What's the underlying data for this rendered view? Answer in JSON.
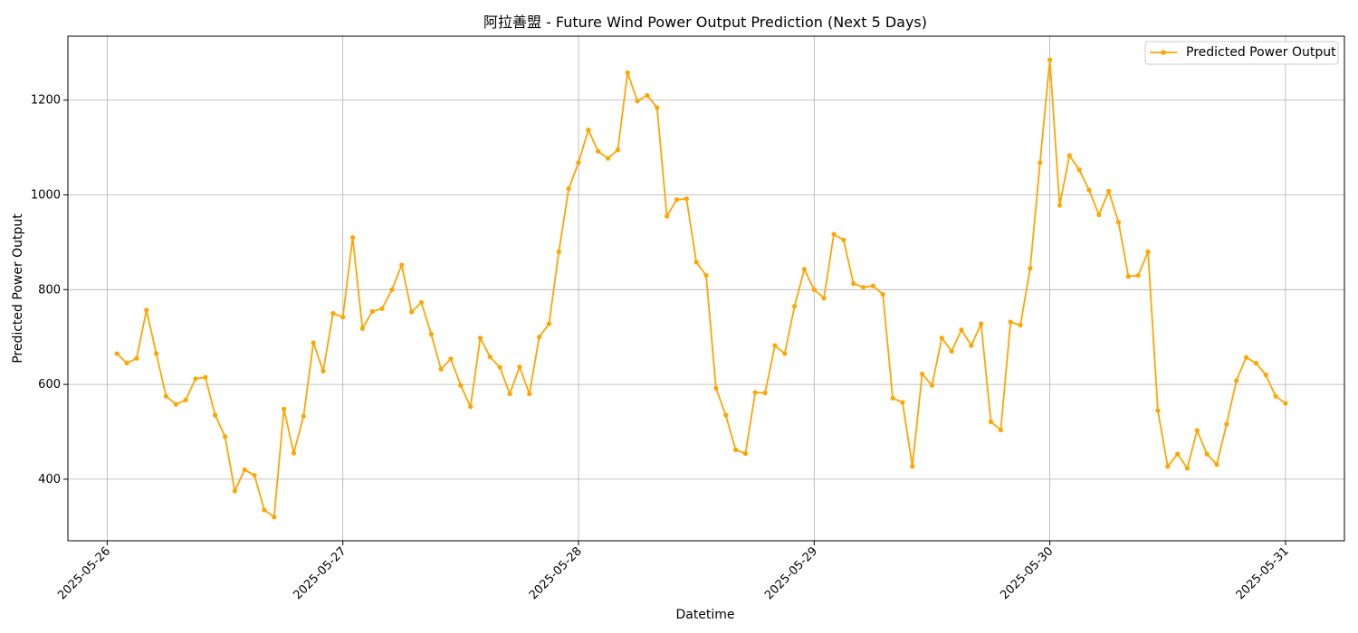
{
  "chart_data": {
    "type": "line",
    "title": "阿拉善盟 - Future Wind Power Output Prediction (Next 5 Days)",
    "xlabel": "Datetime",
    "ylabel": "Predicted Power Output",
    "x_ticks": [
      "2025-05-26",
      "2025-05-27",
      "2025-05-28",
      "2025-05-29",
      "2025-05-30",
      "2025-05-31"
    ],
    "y_ticks": [
      400,
      600,
      800,
      1000,
      1200
    ],
    "xlim": [
      "2025-05-25T20:00",
      "2025-05-31T06:00"
    ],
    "ylim": [
      270,
      1335
    ],
    "grid": true,
    "legend_position": "top-right",
    "color": "#FFA500",
    "series": [
      {
        "name": "Predicted Power Output",
        "interval_hours": 1,
        "start": "2025-05-26T01:00",
        "values": [
          665,
          645,
          655,
          757,
          665,
          575,
          558,
          567,
          612,
          615,
          535,
          490,
          375,
          420,
          408,
          335,
          320,
          548,
          455,
          533,
          688,
          628,
          750,
          742,
          910,
          718,
          754,
          760,
          800,
          852,
          753,
          773,
          706,
          632,
          654,
          598,
          553,
          698,
          658,
          636,
          580,
          637,
          580,
          700,
          728,
          880,
          1013,
          1068,
          1137,
          1092,
          1077,
          1095,
          1258,
          1198,
          1210,
          1184,
          955,
          990,
          992,
          858,
          830,
          592,
          535,
          462,
          454,
          583,
          582,
          682,
          665,
          765,
          843,
          800,
          782,
          917,
          905,
          813,
          805,
          808,
          790,
          571,
          562,
          427,
          622,
          598,
          698,
          670,
          715,
          682,
          728,
          521,
          504,
          732,
          725,
          845,
          1068,
          1285,
          978,
          1083,
          1053,
          1010,
          958,
          1008,
          942,
          828,
          830,
          880,
          545,
          427,
          453,
          423,
          503,
          453,
          431,
          516,
          608,
          657,
          645,
          620,
          575,
          560
        ]
      }
    ]
  }
}
